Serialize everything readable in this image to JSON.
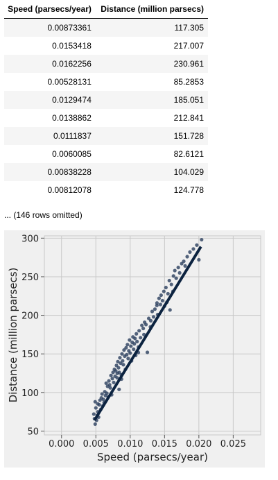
{
  "table": {
    "columns": [
      "Speed (parsecs/year)",
      "Distance (million parsecs)"
    ],
    "rows": [
      [
        "0.00873361",
        "117.305"
      ],
      [
        "0.0153418",
        "217.007"
      ],
      [
        "0.0162256",
        "230.961"
      ],
      [
        "0.00528131",
        "85.2853"
      ],
      [
        "0.0129474",
        "185.051"
      ],
      [
        "0.0138862",
        "212.841"
      ],
      [
        "0.0111837",
        "151.728"
      ],
      [
        "0.0060085",
        "82.6121"
      ],
      [
        "0.00838228",
        "104.029"
      ],
      [
        "0.00812078",
        "124.778"
      ]
    ],
    "omitted_text": "... (146 rows omitted)"
  },
  "chart_data": {
    "type": "scatter",
    "xlabel": "Speed (parsecs/year)",
    "ylabel": "Distance (million parsecs)",
    "xlim": [
      -0.0025,
      0.029
    ],
    "ylim": [
      45,
      303
    ],
    "xticks": [
      0.0,
      0.005,
      0.01,
      0.015,
      0.02,
      0.025
    ],
    "xtick_labels": [
      "0.000",
      "0.005",
      "0.010",
      "0.015",
      "0.020",
      "0.025"
    ],
    "yticks": [
      50,
      100,
      150,
      200,
      250,
      300
    ],
    "ytick_labels": [
      "50",
      "100",
      "150",
      "200",
      "250",
      "300"
    ],
    "grid": true,
    "colors": {
      "background": "#f0f0f0",
      "grid": "#c8c8c8",
      "points": "#2a3e5e",
      "line": "#0c2340"
    },
    "points": [
      [
        0.00873361,
        117.305
      ],
      [
        0.0153418,
        217.007
      ],
      [
        0.0162256,
        230.961
      ],
      [
        0.00528131,
        85.2853
      ],
      [
        0.0129474,
        185.051
      ],
      [
        0.0138862,
        212.841
      ],
      [
        0.0111837,
        151.728
      ],
      [
        0.0060085,
        82.6121
      ],
      [
        0.00838228,
        104.029
      ],
      [
        0.00812078,
        124.778
      ],
      [
        0.0047,
        72
      ],
      [
        0.0048,
        66
      ],
      [
        0.0049,
        59
      ],
      [
        0.0049,
        88
      ],
      [
        0.005,
        80
      ],
      [
        0.0051,
        64
      ],
      [
        0.0052,
        70
      ],
      [
        0.0053,
        75
      ],
      [
        0.0054,
        68
      ],
      [
        0.0055,
        84
      ],
      [
        0.0056,
        90
      ],
      [
        0.0057,
        78
      ],
      [
        0.0058,
        93
      ],
      [
        0.0059,
        98
      ],
      [
        0.0061,
        91
      ],
      [
        0.0062,
        87
      ],
      [
        0.0063,
        101
      ],
      [
        0.0064,
        96
      ],
      [
        0.0065,
        112
      ],
      [
        0.0066,
        99
      ],
      [
        0.0067,
        108
      ],
      [
        0.0068,
        94
      ],
      [
        0.0069,
        115
      ],
      [
        0.007,
        110
      ],
      [
        0.0071,
        106
      ],
      [
        0.0072,
        122
      ],
      [
        0.0073,
        97
      ],
      [
        0.0074,
        118
      ],
      [
        0.0075,
        126
      ],
      [
        0.0076,
        113
      ],
      [
        0.0077,
        130
      ],
      [
        0.0078,
        121
      ],
      [
        0.0079,
        128
      ],
      [
        0.008,
        135
      ],
      [
        0.0081,
        119
      ],
      [
        0.0082,
        140
      ],
      [
        0.0083,
        132
      ],
      [
        0.0084,
        126
      ],
      [
        0.0085,
        145
      ],
      [
        0.0086,
        138
      ],
      [
        0.0087,
        123
      ],
      [
        0.0088,
        150
      ],
      [
        0.0089,
        141
      ],
      [
        0.009,
        136
      ],
      [
        0.0091,
        155
      ],
      [
        0.0092,
        147
      ],
      [
        0.0093,
        130
      ],
      [
        0.0094,
        158
      ],
      [
        0.0095,
        149
      ],
      [
        0.0096,
        162
      ],
      [
        0.0097,
        144
      ],
      [
        0.0098,
        154
      ],
      [
        0.0099,
        168
      ],
      [
        0.01,
        151
      ],
      [
        0.0101,
        160
      ],
      [
        0.0102,
        141
      ],
      [
        0.0103,
        165
      ],
      [
        0.0104,
        172
      ],
      [
        0.0105,
        156
      ],
      [
        0.0106,
        163
      ],
      [
        0.0107,
        170
      ],
      [
        0.0108,
        148
      ],
      [
        0.0109,
        176
      ],
      [
        0.011,
        166
      ],
      [
        0.0112,
        159
      ],
      [
        0.0113,
        180
      ],
      [
        0.0115,
        171
      ],
      [
        0.0117,
        187
      ],
      [
        0.0119,
        183
      ],
      [
        0.012,
        175
      ],
      [
        0.0121,
        191
      ],
      [
        0.0123,
        188
      ],
      [
        0.0125,
        152
      ],
      [
        0.0127,
        196
      ],
      [
        0.013,
        193
      ],
      [
        0.0132,
        205
      ],
      [
        0.0134,
        198
      ],
      [
        0.0136,
        208
      ],
      [
        0.0139,
        216
      ],
      [
        0.014,
        201
      ],
      [
        0.0142,
        222
      ],
      [
        0.0144,
        214
      ],
      [
        0.0145,
        226
      ],
      [
        0.0147,
        219
      ],
      [
        0.0149,
        231
      ],
      [
        0.015,
        212
      ],
      [
        0.0152,
        236
      ],
      [
        0.0155,
        228
      ],
      [
        0.0157,
        245
      ],
      [
        0.0158,
        207
      ],
      [
        0.016,
        240
      ],
      [
        0.0163,
        251
      ],
      [
        0.0165,
        258
      ],
      [
        0.0167,
        248
      ],
      [
        0.017,
        262
      ],
      [
        0.0172,
        255
      ],
      [
        0.0175,
        267
      ],
      [
        0.0178,
        270
      ],
      [
        0.018,
        264
      ],
      [
        0.0183,
        276
      ],
      [
        0.0187,
        282
      ],
      [
        0.0192,
        286
      ],
      [
        0.0197,
        291
      ],
      [
        0.02,
        272
      ],
      [
        0.0204,
        298
      ]
    ],
    "fit_line": {
      "x": [
        0.0048,
        0.0203
      ],
      "y": [
        64,
        289
      ]
    }
  }
}
